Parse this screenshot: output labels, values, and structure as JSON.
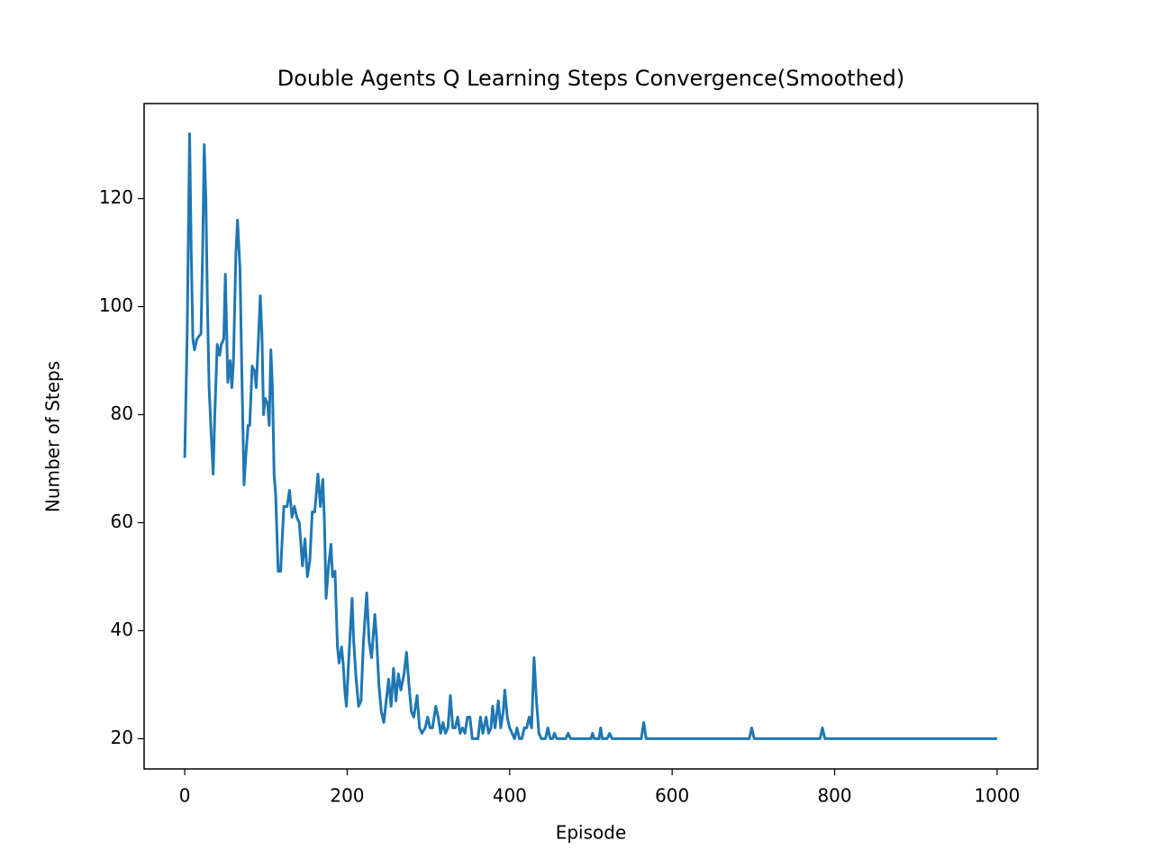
{
  "chart_data": {
    "type": "line",
    "title": "Double Agents Q Learning Steps Convergence(Smoothed)",
    "x_label": "Episode",
    "y_label": "Number of Steps",
    "x": [
      0,
      3,
      6,
      8,
      10,
      12,
      15,
      20,
      22,
      24,
      26,
      28,
      30,
      33,
      35,
      37,
      40,
      43,
      45,
      48,
      50,
      53,
      56,
      58,
      60,
      63,
      65,
      68,
      70,
      73,
      75,
      78,
      80,
      83,
      86,
      88,
      91,
      93,
      95,
      97,
      99,
      102,
      104,
      106,
      108,
      110,
      112,
      115,
      118,
      122,
      126,
      129,
      132,
      135,
      138,
      141,
      145,
      148,
      151,
      154,
      157,
      160,
      164,
      167,
      170,
      172,
      174,
      177,
      180,
      182,
      185,
      188,
      190,
      193,
      195,
      197,
      199,
      202,
      206,
      208,
      211,
      214,
      217,
      220,
      224,
      227,
      230,
      234,
      236,
      239,
      242,
      245,
      248,
      251,
      254,
      257,
      260,
      263,
      266,
      270,
      273,
      276,
      279,
      282,
      286,
      289,
      292,
      296,
      299,
      302,
      305,
      309,
      312,
      315,
      318,
      321,
      324,
      327,
      330,
      333,
      336,
      339,
      342,
      345,
      348,
      351,
      354,
      358,
      361,
      364,
      367,
      371,
      374,
      377,
      379,
      382,
      386,
      389,
      392,
      394,
      397,
      400,
      403,
      406,
      409,
      412,
      415,
      418,
      421,
      424,
      427,
      430,
      433,
      436,
      439,
      444,
      447,
      450,
      453,
      455,
      458,
      469,
      472,
      475,
      500,
      502,
      504,
      510,
      512,
      514,
      520,
      523,
      526,
      562,
      565,
      568,
      695,
      698,
      701,
      782,
      785,
      788,
      1000
    ],
    "series": [
      {
        "name": "Steps",
        "color": "#1f77b4",
        "values": [
          72,
          95,
          132,
          110,
          94,
          92,
          94,
          95,
          110,
          130,
          120,
          100,
          85,
          75,
          69,
          80,
          93,
          91,
          93,
          94,
          106,
          86,
          90,
          85,
          90,
          110,
          116,
          107,
          90,
          67,
          72,
          78,
          78,
          89,
          88,
          85,
          95,
          102,
          95,
          80,
          83,
          82,
          78,
          92,
          85,
          69,
          65,
          51,
          51,
          63,
          63,
          66,
          61,
          63,
          61,
          60,
          52,
          57,
          50,
          53,
          62,
          62,
          69,
          63,
          68,
          60,
          46,
          52,
          56,
          50,
          51,
          37,
          34,
          37,
          34,
          29,
          26,
          35,
          46,
          38,
          31,
          26,
          27,
          38,
          47,
          38,
          35,
          43,
          39,
          30,
          25,
          23,
          27,
          31,
          26,
          33,
          27,
          32,
          29,
          32,
          36,
          30,
          25,
          24,
          28,
          22,
          21,
          22,
          24,
          22,
          22,
          26,
          24,
          21,
          23,
          21,
          22,
          28,
          22,
          22,
          24,
          21,
          22,
          21,
          24,
          24,
          20,
          20,
          20,
          24,
          21,
          24,
          21,
          22,
          26,
          22,
          27,
          22,
          25,
          29,
          24,
          22,
          21,
          20,
          22,
          20,
          20,
          22,
          22,
          24,
          22,
          35,
          27,
          21,
          20,
          20,
          22,
          20,
          20,
          21,
          20,
          20,
          21,
          20,
          20,
          21,
          20,
          20,
          22,
          20,
          20,
          21,
          20,
          20,
          23,
          20,
          20,
          22,
          20,
          20,
          22,
          20,
          20
        ]
      }
    ],
    "xlim": [
      -50,
      1050
    ],
    "ylim": [
      14.4,
      137.6
    ],
    "xticks": [
      0,
      200,
      400,
      600,
      800,
      1000
    ],
    "yticks": [
      20,
      40,
      60,
      80,
      100,
      120
    ]
  }
}
